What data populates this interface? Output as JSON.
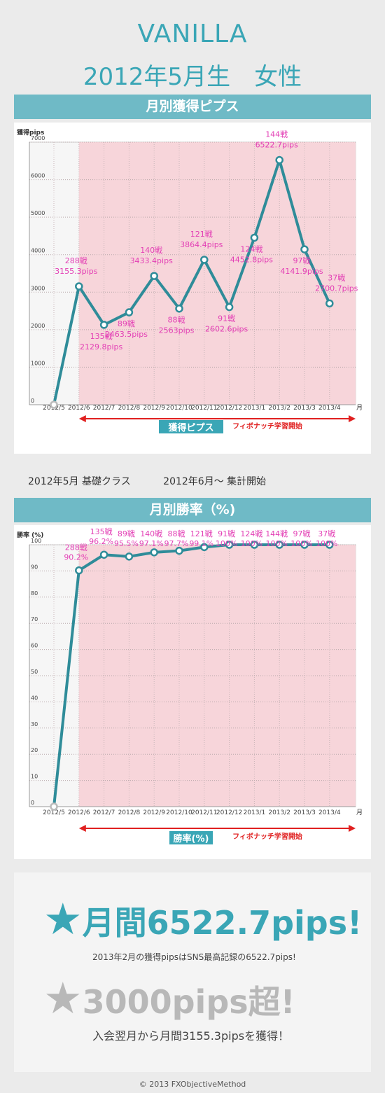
{
  "header": {
    "name": "VANILLA",
    "profile": "2012年5月生　女性"
  },
  "section1": {
    "title": "月別獲得ピプス"
  },
  "section2": {
    "title": "月別勝率（%)"
  },
  "caption": {
    "left": "2012年5月 基礎クラス",
    "right": "2012年6月～ 集計開始"
  },
  "highlight": {
    "line1": "月間6522.7pips!",
    "line1_sub": "2013年2月の獲得pipsはSNS最高記録の6522.7pips!",
    "line2": "3000pips超!",
    "line2_sub": "入会翌月から月間3155.3pipsを獲得！",
    "star": "★"
  },
  "footer": "© 2013 FXObjectiveMethod",
  "colors": {
    "accent": "#3aa6b6",
    "line": "#2f8c99",
    "label": "#e33fb5",
    "zone": "#f7d5da",
    "arrow": "#e02020"
  },
  "chart_data": [
    {
      "type": "line",
      "ylabel": "獲得pips",
      "xlabel": "月",
      "ylim": [
        0,
        7000
      ],
      "yticks": [
        0,
        1000,
        2000,
        3000,
        4000,
        5000,
        6000,
        7000
      ],
      "categories": [
        "2012/5",
        "2012/6",
        "2012/7",
        "2012/8",
        "2012/9",
        "2012/10",
        "2012/11",
        "2012/12",
        "2013/1",
        "2013/2",
        "2013/3",
        "2013/4"
      ],
      "values": [
        0,
        3155.3,
        2129.8,
        2463.5,
        3433.4,
        2563,
        3864.4,
        2602.6,
        4452.8,
        6522.7,
        4141.9,
        2700.7
      ],
      "labels": [
        null,
        {
          "a": "288戦",
          "b": "3155.3pips"
        },
        {
          "a": "135戦",
          "b": "2129.8pips"
        },
        {
          "a": "89戦",
          "b": "2463.5pips"
        },
        {
          "a": "140戦",
          "b": "3433.4pips"
        },
        {
          "a": "88戦",
          "b": "2563pips"
        },
        {
          "a": "121戦",
          "b": "3864.4pips"
        },
        {
          "a": "91戦",
          "b": "2602.6pips"
        },
        {
          "a": "124戦",
          "b": "4452.8pips"
        },
        {
          "a": "144戦",
          "b": "6522.7pips"
        },
        {
          "a": "97戦",
          "b": "4141.9pips"
        },
        {
          "a": "37戦",
          "b": "2700.7pips"
        }
      ],
      "annotation": "フィボナッチ学習開始",
      "legend": "獲得ピプス"
    },
    {
      "type": "line",
      "ylabel": "勝率 (%)",
      "xlabel": "月",
      "ylim": [
        0,
        100
      ],
      "yticks": [
        0,
        10,
        20,
        30,
        40,
        50,
        60,
        70,
        80,
        90,
        100
      ],
      "categories": [
        "2012/5",
        "2012/6",
        "2012/7",
        "2012/8",
        "2012/9",
        "2012/10",
        "2012/11",
        "2012/12",
        "2013/1",
        "2013/2",
        "2013/3",
        "2013/4"
      ],
      "values": [
        0,
        90.2,
        96.2,
        95.5,
        97.1,
        97.7,
        99.1,
        100,
        100,
        100,
        100,
        100
      ],
      "labels": [
        null,
        {
          "a": "288戦",
          "b": "90.2%"
        },
        {
          "a": "135戦",
          "b": "96.2%"
        },
        {
          "a": "89戦",
          "b": "95.5%"
        },
        {
          "a": "140戦",
          "b": "97.1%"
        },
        {
          "a": "88戦",
          "b": "97.7%"
        },
        {
          "a": "121戦",
          "b": "99.1%"
        },
        {
          "a": "91戦",
          "b": "100%"
        },
        {
          "a": "124戦",
          "b": "100%"
        },
        {
          "a": "144戦",
          "b": "100%"
        },
        {
          "a": "97戦",
          "b": "100%"
        },
        {
          "a": "37戦",
          "b": "100%"
        }
      ],
      "annotation": "フィボナッチ学習開始",
      "legend": "勝率(%)"
    }
  ]
}
